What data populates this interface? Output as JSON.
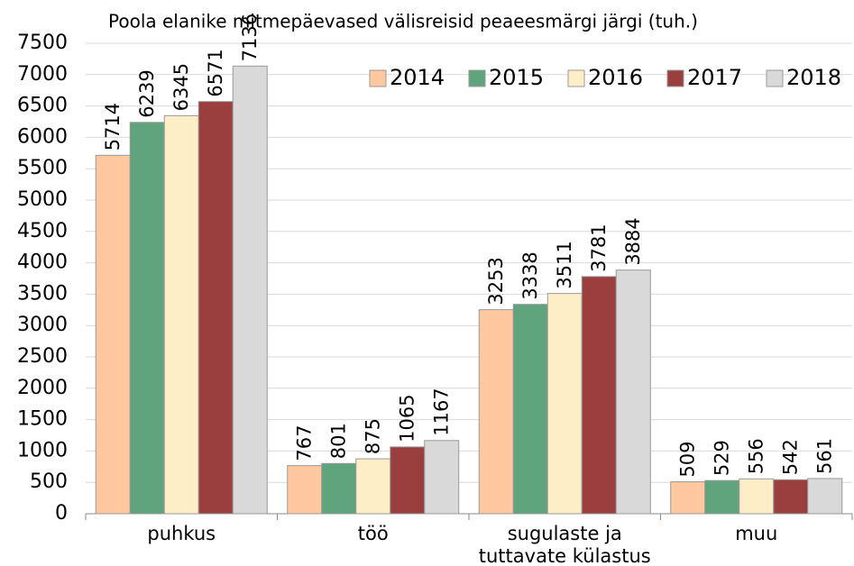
{
  "chart_data": {
    "type": "bar",
    "title": "Poola elanike mitmepäevased välisreisid peaeesmärgi järgi (tuh.)",
    "categories": [
      "puhkus",
      "töö",
      "sugulaste ja tuttavate külastus",
      "muu"
    ],
    "series": [
      {
        "name": "2014",
        "color": "#ffc89e",
        "values": [
          5714,
          767,
          3253,
          509
        ]
      },
      {
        "name": "2015",
        "color": "#5fa47c",
        "values": [
          6239,
          801,
          3338,
          529
        ]
      },
      {
        "name": "2016",
        "color": "#fdeec8",
        "values": [
          6345,
          875,
          3511,
          556
        ]
      },
      {
        "name": "2017",
        "color": "#9a3f3d",
        "values": [
          6571,
          1065,
          3781,
          542
        ]
      },
      {
        "name": "2018",
        "color": "#d9d9d9",
        "values": [
          7136,
          1167,
          3884,
          561
        ]
      }
    ],
    "ylim": [
      0,
      7500
    ],
    "yticks": [
      0,
      500,
      1000,
      1500,
      2000,
      2500,
      3000,
      3500,
      4000,
      4500,
      5000,
      5500,
      6000,
      6500,
      7000,
      7500
    ],
    "grid": true,
    "legend": "top-right"
  }
}
